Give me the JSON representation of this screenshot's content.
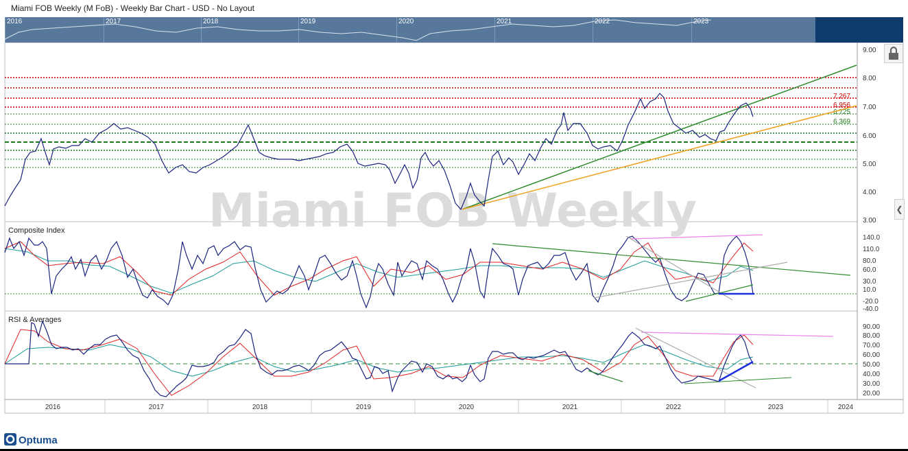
{
  "window": {
    "title": "Miami FOB Weekly (M FoB) - Weekly Bar Chart - USD - No Layout"
  },
  "navigator": {
    "years": [
      "2016",
      "2017",
      "2018",
      "2019",
      "2020",
      "2021",
      "2022",
      "2023"
    ]
  },
  "watermark": "Miami FOB Weekly",
  "brand": "Optuma",
  "colors": {
    "price": "#1a237e",
    "accent": "#0e3b6c",
    "resistance": "#cc0000",
    "support": "#1b7a1b",
    "trend_green": "#2e8b2e",
    "trend_orange": "#f0a020",
    "ma_red": "#e02020",
    "ma_teal": "#1a9a9a",
    "divergence_pink": "#ee82ee",
    "divergence_blue": "#1f2fe0",
    "grey_line": "#aaaaaa"
  },
  "price_panel": {
    "y_ticks": [
      "9.00",
      "8.00",
      "7.00",
      "6.00",
      "5.00",
      "4.00",
      "3.00"
    ],
    "level_labels": [
      {
        "text": "7.267",
        "color": "#cc0000"
      },
      {
        "text": "6.956",
        "color": "#cc0000"
      },
      {
        "text": "6.725",
        "color": "#1b7a1b"
      },
      {
        "text": "6.369",
        "color": "#1b7a1b"
      }
    ]
  },
  "composite_panel": {
    "title": "Composite Index",
    "y_ticks": [
      "140.0",
      "110.0",
      "80.0",
      "60.0",
      "30.0",
      "10.0",
      "-20.0",
      "-40.0"
    ]
  },
  "rsi_panel": {
    "title": "RSI & Averages",
    "y_ticks": [
      "90.00",
      "80.00",
      "70.00",
      "60.00",
      "50.00",
      "40.00",
      "30.00",
      "20.00"
    ]
  },
  "x_axis": {
    "labels": [
      "2016",
      "2017",
      "2018",
      "2019",
      "2020",
      "2021",
      "2022",
      "2023",
      "2024"
    ]
  },
  "chart_data": {
    "type": "line",
    "x_range": [
      "2015-09",
      "2024-06"
    ],
    "panels": [
      {
        "name": "price",
        "ylim": [
          3.0,
          9.0
        ],
        "levels": [
          {
            "value": 8.0,
            "color": "resistance"
          },
          {
            "value": 7.6,
            "color": "resistance"
          },
          {
            "value": 7.267,
            "color": "resistance"
          },
          {
            "value": 6.956,
            "color": "resistance"
          },
          {
            "value": 6.725,
            "color": "support"
          },
          {
            "value": 6.369,
            "color": "support"
          },
          {
            "value": 6.05,
            "color": "support"
          },
          {
            "value": 5.72,
            "color": "support",
            "dashed": true
          },
          {
            "value": 5.42,
            "color": "support"
          },
          {
            "value": 5.1,
            "color": "support"
          },
          {
            "value": 4.85,
            "color": "support"
          }
        ],
        "series": [
          {
            "color": "price",
            "points": [
              [
                2015.75,
                3.5
              ],
              [
                2015.85,
                4.1
              ],
              [
                2015.95,
                5.0
              ],
              [
                2016.05,
                5.4
              ],
              [
                2016.15,
                5.45
              ],
              [
                2016.22,
                5.9
              ],
              [
                2016.3,
                5.5
              ],
              [
                2016.38,
                5.4
              ],
              [
                2016.5,
                5.5
              ],
              [
                2016.6,
                5.7
              ],
              [
                2016.75,
                5.6
              ],
              [
                2016.9,
                5.9
              ],
              [
                2017.0,
                6.1
              ],
              [
                2017.1,
                6.35
              ],
              [
                2017.2,
                6.15
              ],
              [
                2017.3,
                6.2
              ],
              [
                2017.4,
                5.9
              ],
              [
                2017.5,
                5.5
              ],
              [
                2017.6,
                4.75
              ],
              [
                2017.7,
                5.0
              ],
              [
                2017.8,
                4.9
              ],
              [
                2017.9,
                4.75
              ],
              [
                2018.0,
                4.65
              ],
              [
                2018.1,
                4.9
              ],
              [
                2018.2,
                5.0
              ],
              [
                2018.3,
                5.8
              ],
              [
                2018.38,
                6.3
              ],
              [
                2018.45,
                5.5
              ],
              [
                2018.55,
                5.1
              ],
              [
                2018.65,
                5.1
              ],
              [
                2018.75,
                5.1
              ],
              [
                2018.85,
                5.1
              ],
              [
                2018.95,
                5.0
              ],
              [
                2019.05,
                5.2
              ],
              [
                2019.15,
                5.3
              ],
              [
                2019.25,
                5.6
              ],
              [
                2019.35,
                5.7
              ],
              [
                2019.45,
                5.2
              ],
              [
                2019.55,
                4.9
              ],
              [
                2019.65,
                4.9
              ],
              [
                2019.75,
                4.6
              ],
              [
                2019.82,
                5.0
              ],
              [
                2019.92,
                4.2
              ],
              [
                2020.0,
                4.6
              ],
              [
                2020.1,
                4.9
              ],
              [
                2020.2,
                4.4
              ],
              [
                2020.3,
                4.8
              ],
              [
                2020.4,
                4.2
              ],
              [
                2020.5,
                3.5
              ],
              [
                2020.6,
                3.3
              ],
              [
                2020.7,
                4.2
              ],
              [
                2020.8,
                3.4
              ],
              [
                2020.9,
                5.2
              ],
              [
                2021.0,
                5.0
              ],
              [
                2021.1,
                4.5
              ],
              [
                2021.2,
                5.0
              ],
              [
                2021.3,
                5.3
              ],
              [
                2021.4,
                5.0
              ],
              [
                2021.5,
                5.5
              ],
              [
                2021.6,
                5.8
              ],
              [
                2021.68,
                6.7
              ],
              [
                2021.75,
                6.0
              ],
              [
                2021.85,
                6.35
              ],
              [
                2021.95,
                6.2
              ],
              [
                2022.05,
                5.9
              ],
              [
                2022.15,
                5.6
              ],
              [
                2022.3,
                5.4
              ],
              [
                2022.42,
                5.5
              ],
              [
                2022.55,
                5.9
              ],
              [
                2022.65,
                6.8
              ],
              [
                2022.72,
                7.3
              ],
              [
                2022.8,
                7.0
              ],
              [
                2022.88,
                7.3
              ],
              [
                2022.95,
                7.4
              ],
              [
                2023.05,
                6.8
              ],
              [
                2023.15,
                6.4
              ],
              [
                2023.25,
                6.3
              ],
              [
                2023.35,
                6.0
              ],
              [
                2023.45,
                6.0
              ],
              [
                2023.55,
                5.9
              ],
              [
                2023.65,
                5.8
              ],
              [
                2023.75,
                6.0
              ],
              [
                2023.85,
                6.6
              ],
              [
                2023.95,
                7.1
              ],
              [
                2024.05,
                7.2
              ],
              [
                2024.12,
                6.9
              ],
              [
                2024.2,
                6.7
              ]
            ]
          }
        ],
        "trendlines": [
          {
            "color": "trend_green",
            "from": [
              2020.6,
              3.35
            ],
            "to": [
              2024.6,
              8.45
            ]
          },
          {
            "color": "trend_orange",
            "from": [
              2020.6,
              3.35
            ],
            "to": [
              2024.6,
              6.95
            ]
          }
        ]
      },
      {
        "name": "composite",
        "ylim": [
          -50,
          160
        ],
        "zero_line": 0,
        "trendlines": [
          {
            "color": "trend_green",
            "from": [
              2020.6,
              125
            ],
            "to": [
              2024.6,
              45
            ]
          },
          {
            "color": "divergence_pink",
            "from": [
              2022.7,
              130
            ],
            "to": [
              2024.1,
              140
            ]
          },
          {
            "color": "divergence_blue",
            "from": [
              2023.5,
              0
            ],
            "to": [
              2024.2,
              0
            ]
          }
        ]
      },
      {
        "name": "rsi",
        "ylim": [
          15,
          95
        ],
        "dashed_line": 50,
        "trendlines": [
          {
            "color": "divergence_pink",
            "from": [
              2022.7,
              84
            ],
            "to": [
              2024.8,
              80
            ]
          },
          {
            "color": "divergence_blue",
            "from": [
              2023.5,
              33
            ],
            "to": [
              2024.2,
              53
            ]
          }
        ]
      }
    ]
  }
}
